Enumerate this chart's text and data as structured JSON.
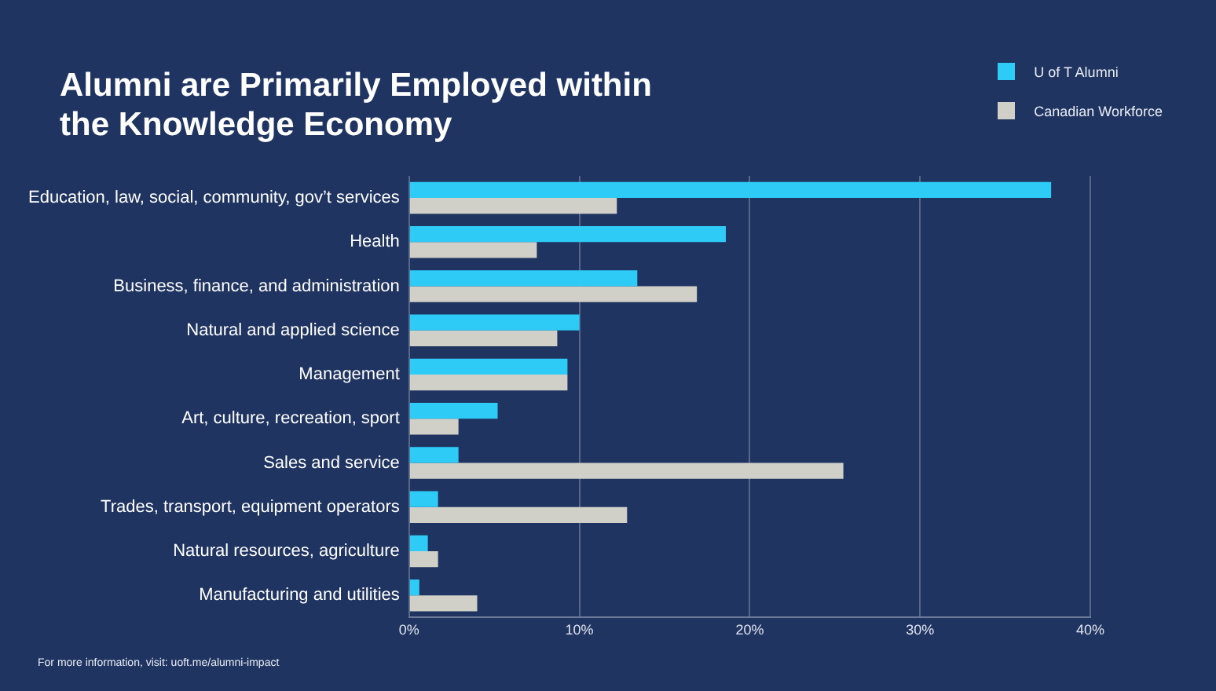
{
  "chart_data": {
    "type": "bar",
    "orientation": "horizontal",
    "title": "Alumni are Primarily Employed within the Knowledge Economy",
    "categories": [
      "Education, law, social, community, gov’t services",
      "Health",
      "Business, finance, and administration",
      "Natural and applied science",
      "Management",
      "Art, culture, recreation, sport",
      "Sales and service",
      "Trades, transport, equipment operators",
      "Natural resources, agriculture",
      "Manufacturing and utilities"
    ],
    "series": [
      {
        "name": "U of T Alumni",
        "color": "#2ecbf7",
        "values": [
          37.7,
          18.6,
          13.4,
          10.0,
          9.3,
          5.2,
          2.9,
          1.7,
          1.1,
          0.6
        ]
      },
      {
        "name": "Canadian Workforce",
        "color": "#d0cfc8",
        "values": [
          12.2,
          7.5,
          16.9,
          8.7,
          9.3,
          2.9,
          25.5,
          12.8,
          1.7,
          4.0
        ]
      }
    ],
    "xlim": [
      0,
      40
    ],
    "xticks": [
      {
        "value": 0,
        "label": "0%"
      },
      {
        "value": 10,
        "label": "10%"
      },
      {
        "value": 20,
        "label": "20%"
      },
      {
        "value": 30,
        "label": "30%"
      },
      {
        "value": 40,
        "label": "40%"
      }
    ],
    "grid": "x",
    "legend": "top right",
    "annotations": [
      "For more information, visit: uoft.me/alumni-impact"
    ]
  }
}
